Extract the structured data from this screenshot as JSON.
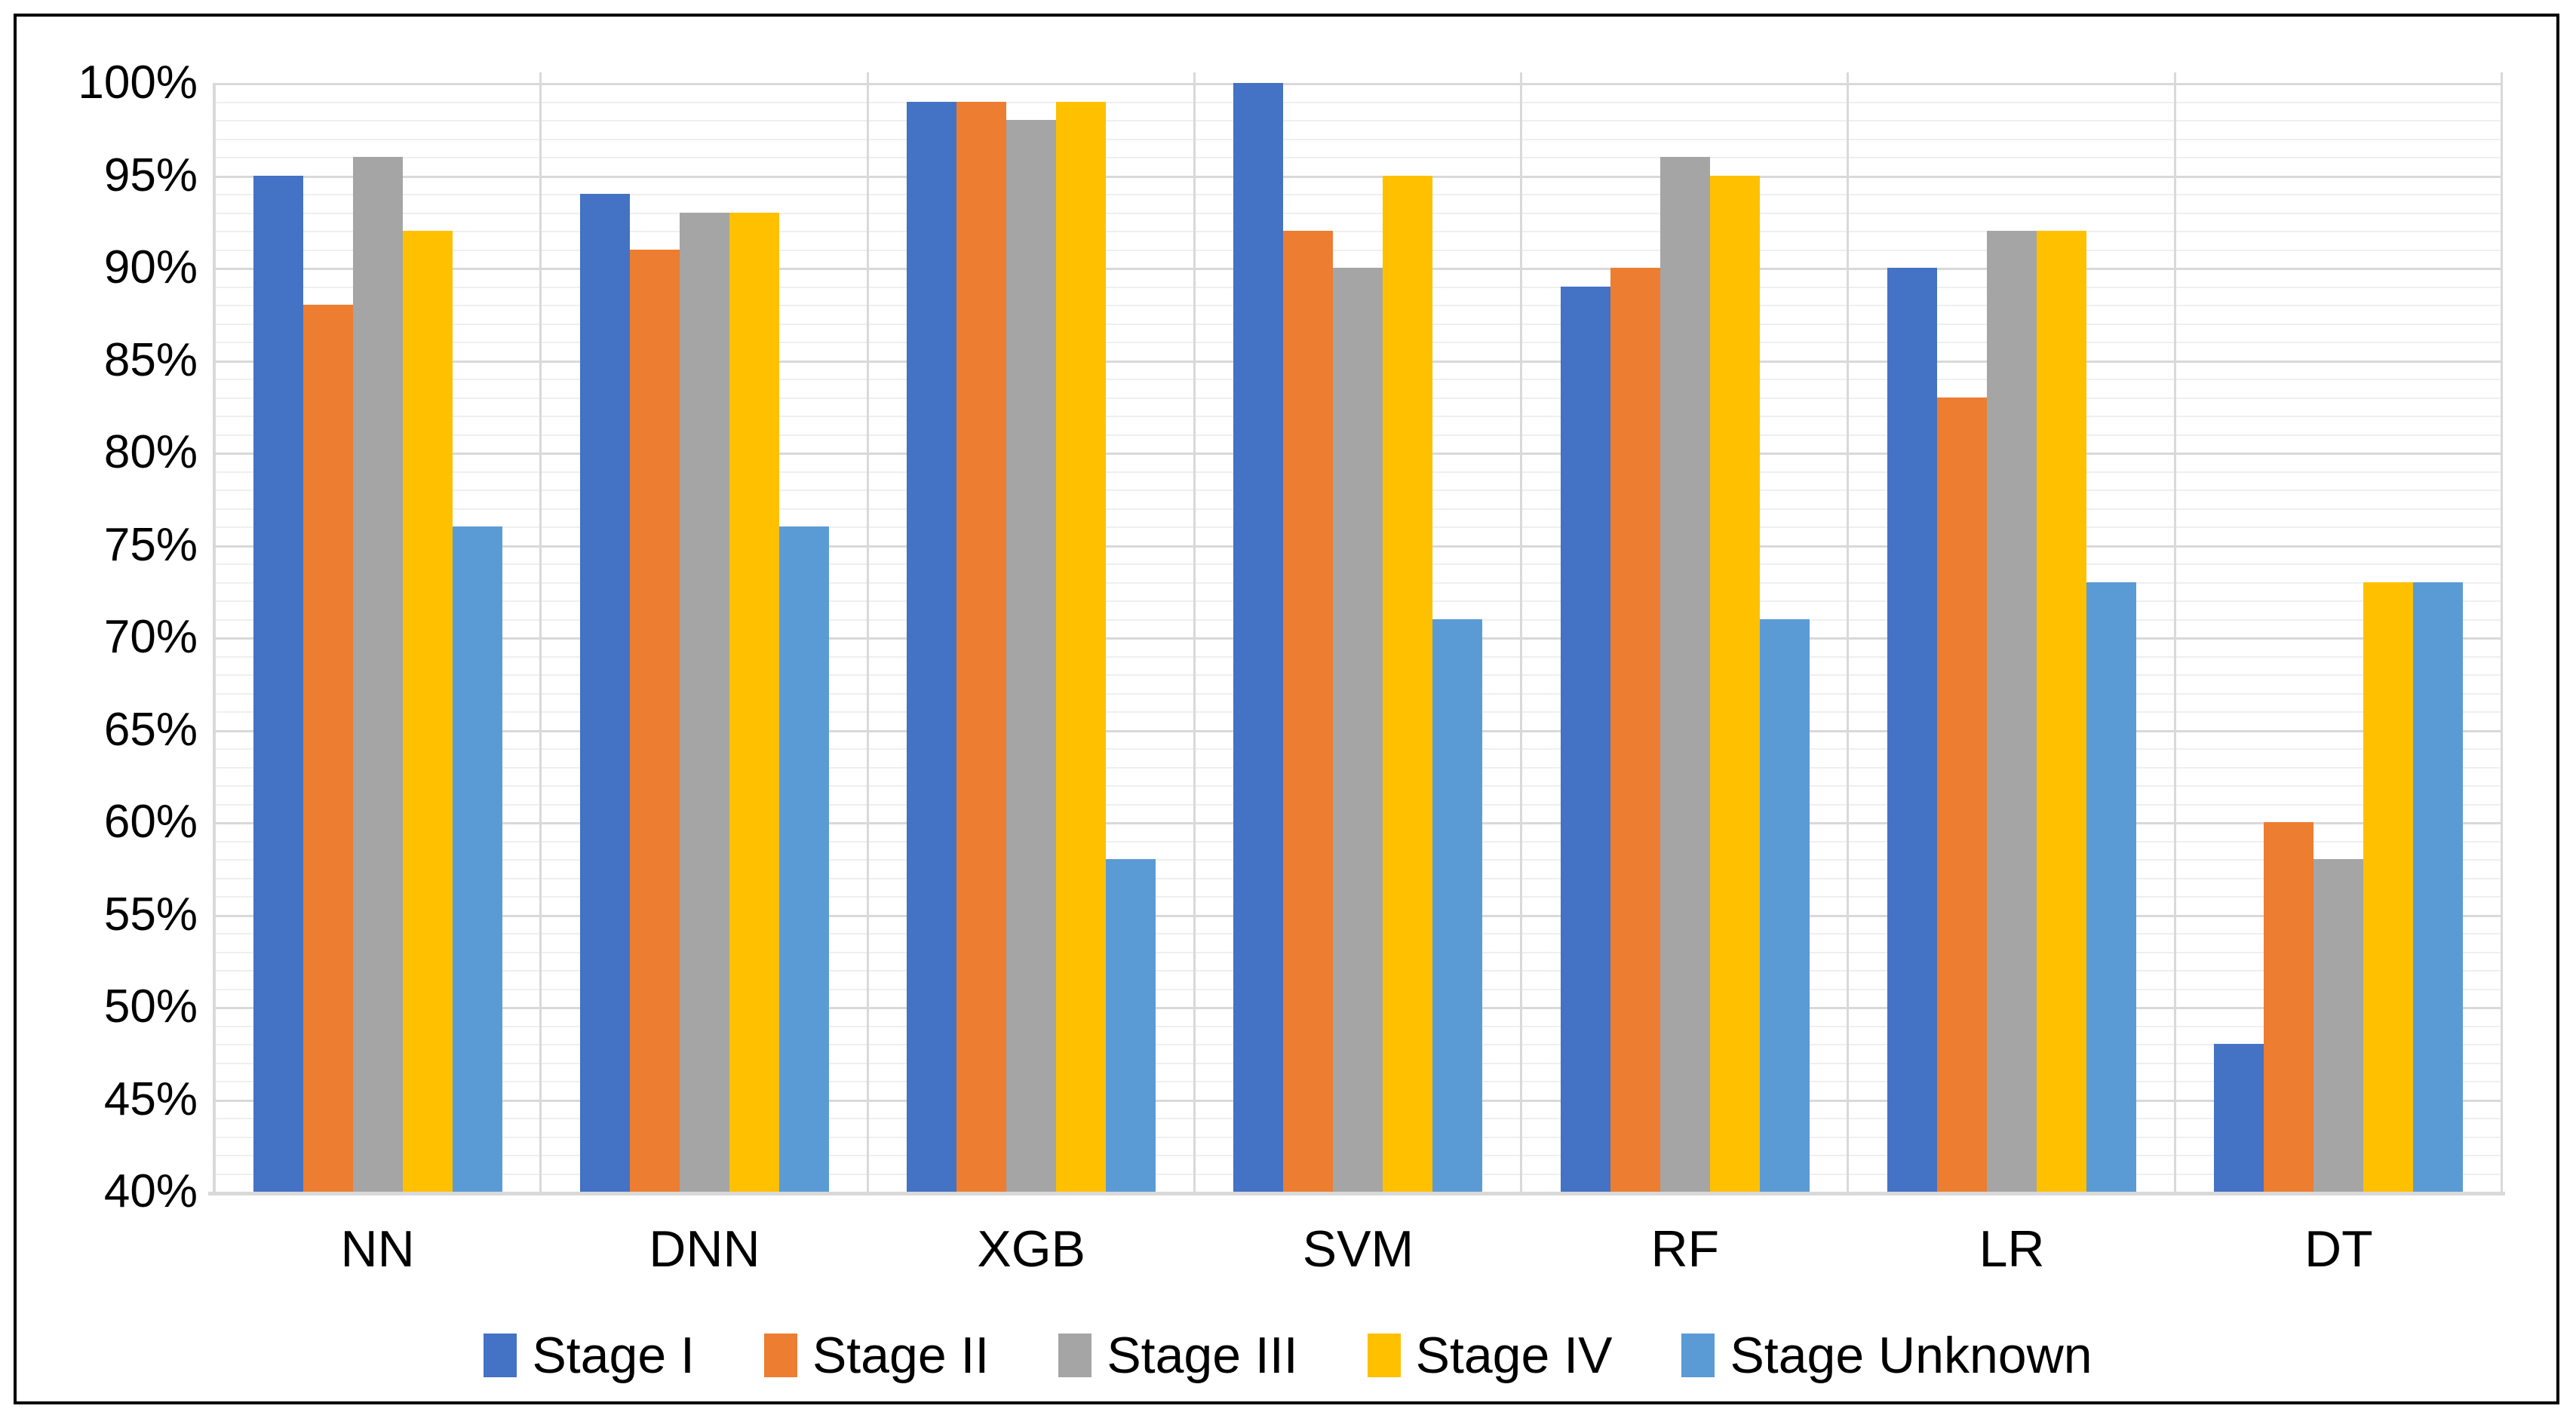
{
  "chart_data": {
    "type": "bar",
    "title": "",
    "xlabel": "",
    "ylabel": "",
    "categories": [
      "NN",
      "DNN",
      "XGB",
      "SVM",
      "RF",
      "LR",
      "DT"
    ],
    "series": [
      {
        "name": "Stage I",
        "color": "#4472C4",
        "values": [
          95,
          94,
          99,
          100,
          89,
          90,
          48
        ]
      },
      {
        "name": "Stage II",
        "color": "#ED7D31",
        "values": [
          88,
          91,
          99,
          92,
          90,
          83,
          60
        ]
      },
      {
        "name": "Stage III",
        "color": "#A5A5A5",
        "values": [
          96,
          93,
          98,
          90,
          96,
          92,
          58
        ]
      },
      {
        "name": "Stage IV",
        "color": "#FFC000",
        "values": [
          92,
          93,
          99,
          95,
          95,
          92,
          73
        ]
      },
      {
        "name": "Stage Unknown",
        "color": "#5B9BD5",
        "values": [
          76,
          76,
          58,
          71,
          71,
          73,
          73
        ]
      }
    ],
    "ylim": [
      40,
      100
    ],
    "y_major_step": 5,
    "y_minor_step": 1,
    "ytick_labels": [
      "100%",
      "95%",
      "90%",
      "85%",
      "80%",
      "75%",
      "70%",
      "65%",
      "60%",
      "55%",
      "50%",
      "45%",
      "40%"
    ],
    "grid": "on",
    "gridline_major_color": "#D9D9D9",
    "gridline_minor_color": "#EFEFEF",
    "axis_color": "#D9D9D9",
    "text_color": "#000000",
    "frame_color": "#000000",
    "background_color": "#FFFFFF",
    "legend_position": "bottom"
  }
}
